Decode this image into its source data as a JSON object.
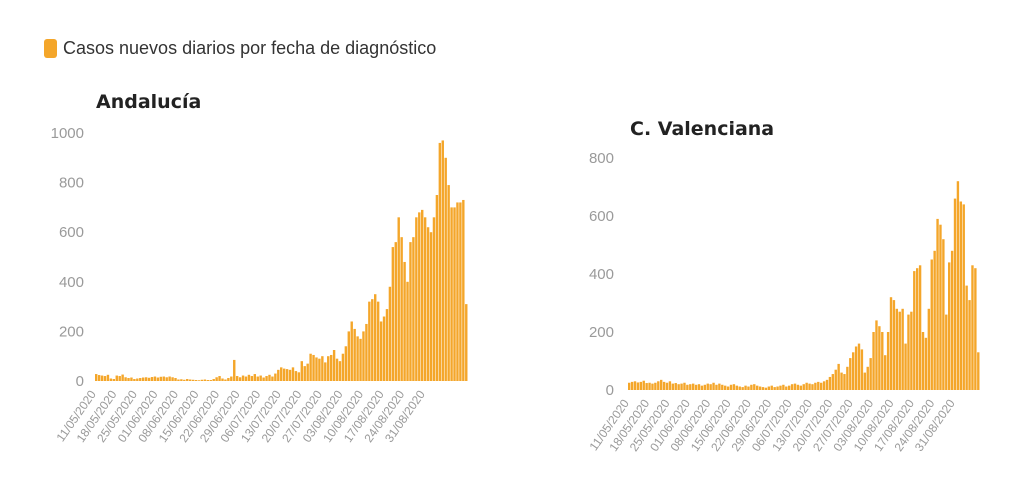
{
  "legend": {
    "label": "Casos nuevos diarios por fecha de diagnóstico",
    "color": "#f4a62a"
  },
  "chart_data": [
    {
      "type": "bar",
      "title": "Andalucía",
      "ylim": [
        0,
        1000
      ],
      "yticks": [
        "0",
        "200",
        "400",
        "600",
        "800",
        "1000"
      ],
      "xtick_labels": [
        "11/05/2020",
        "18/05/2020",
        "25/05/2020",
        "01/06/2020",
        "08/06/2020",
        "15/06/2020",
        "22/06/2020",
        "29/06/2020",
        "06/07/2020",
        "13/07/2020",
        "20/07/2020",
        "27/07/2020",
        "03/08/2020",
        "10/08/2020",
        "17/08/2020",
        "24/08/2020",
        "31/08/2020"
      ],
      "start_date": "2020-05-11",
      "values": [
        28,
        24,
        22,
        20,
        25,
        10,
        8,
        22,
        20,
        26,
        15,
        12,
        14,
        8,
        10,
        12,
        14,
        15,
        13,
        16,
        18,
        14,
        17,
        18,
        15,
        18,
        15,
        12,
        6,
        7,
        5,
        8,
        6,
        5,
        4,
        3,
        5,
        6,
        4,
        4,
        8,
        15,
        20,
        10,
        6,
        12,
        18,
        85,
        20,
        15,
        22,
        18,
        25,
        20,
        28,
        18,
        22,
        14,
        20,
        25,
        18,
        30,
        45,
        55,
        50,
        48,
        45,
        55,
        40,
        35,
        80,
        60,
        70,
        110,
        105,
        95,
        90,
        100,
        75,
        100,
        105,
        125,
        90,
        80,
        110,
        140,
        200,
        240,
        210,
        180,
        170,
        200,
        230,
        320,
        330,
        350,
        320,
        240,
        260,
        290,
        380,
        540,
        560,
        660,
        580,
        480,
        400,
        560,
        580,
        660,
        680,
        690,
        660,
        620,
        600,
        660,
        750,
        960,
        970,
        900,
        790,
        700,
        700,
        720,
        720,
        730,
        310
      ]
    },
    {
      "type": "bar",
      "title": "C. Valenciana",
      "ylim": [
        0,
        800
      ],
      "yticks": [
        "0",
        "200",
        "400",
        "600",
        "800"
      ],
      "xtick_labels": [
        "11/05/2020",
        "18/05/2020",
        "25/05/2020",
        "01/06/2020",
        "08/06/2020",
        "15/06/2020",
        "22/06/2020",
        "29/06/2020",
        "06/07/2020",
        "13/07/2020",
        "20/07/2020",
        "27/07/2020",
        "03/08/2020",
        "10/08/2020",
        "17/08/2020",
        "24/08/2020",
        "31/08/2020"
      ],
      "start_date": "2020-05-11",
      "values": [
        25,
        28,
        30,
        26,
        28,
        32,
        24,
        25,
        22,
        25,
        30,
        35,
        28,
        25,
        30,
        22,
        24,
        20,
        22,
        25,
        18,
        20,
        22,
        18,
        20,
        15,
        18,
        22,
        20,
        25,
        18,
        22,
        18,
        15,
        12,
        18,
        20,
        15,
        12,
        10,
        15,
        12,
        18,
        20,
        15,
        12,
        10,
        8,
        12,
        15,
        10,
        12,
        15,
        18,
        12,
        15,
        20,
        22,
        18,
        15,
        20,
        25,
        22,
        20,
        25,
        28,
        25,
        30,
        35,
        45,
        55,
        70,
        90,
        60,
        55,
        80,
        110,
        130,
        150,
        160,
        140,
        60,
        80,
        110,
        200,
        240,
        220,
        200,
        120,
        200,
        320,
        310,
        280,
        270,
        280,
        160,
        260,
        270,
        410,
        420,
        430,
        200,
        180,
        280,
        450,
        480,
        590,
        570,
        520,
        260,
        440,
        480,
        660,
        720,
        650,
        640,
        360,
        310,
        430,
        420,
        130
      ]
    }
  ]
}
